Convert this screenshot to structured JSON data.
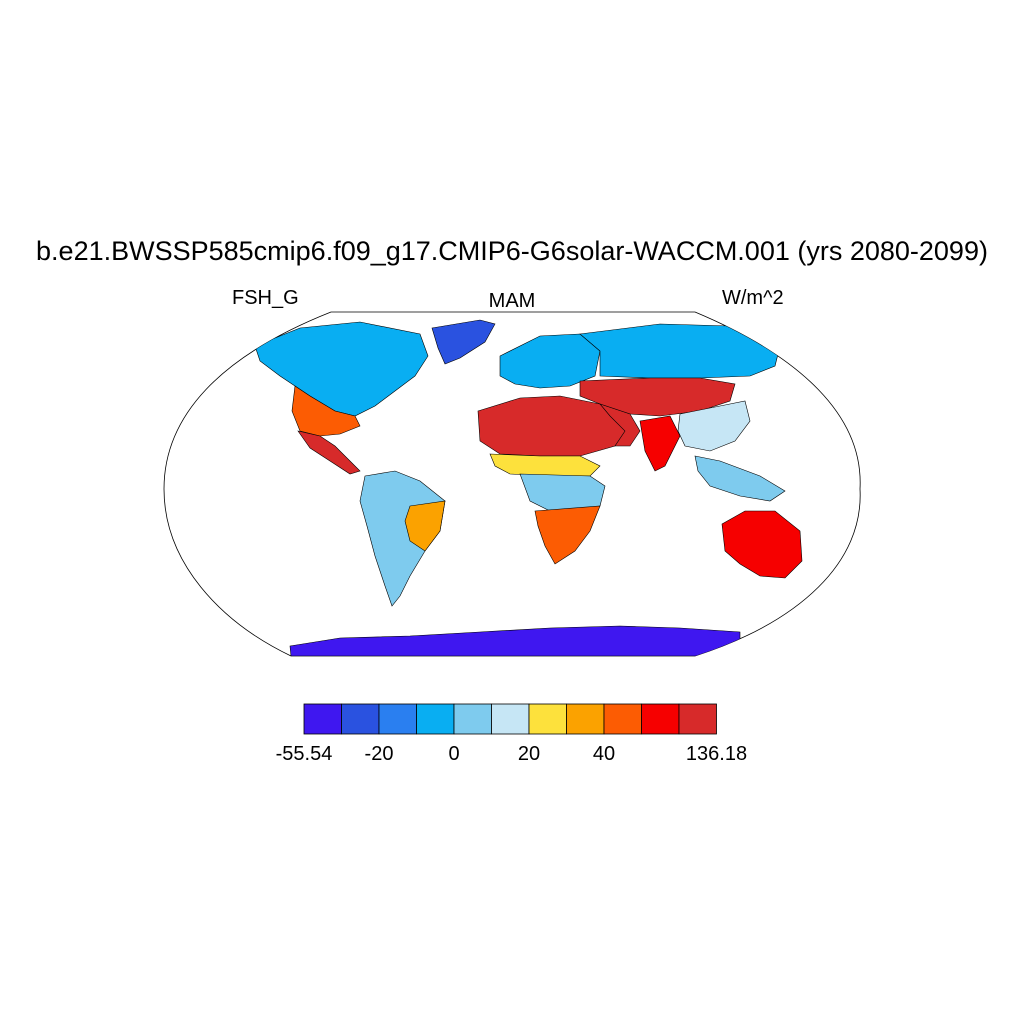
{
  "title": "b.e21.BWSSP585cmip6.f09_g17.CMIP6-G6solar-WACCM.001 (yrs 2080-2099)",
  "left_label": "FSH_G",
  "center_label": "MAM",
  "right_label": "W/m^2",
  "map": {
    "projection": "robinson",
    "ocean_fill": "#ffffff",
    "coastline_color": "#000000",
    "regions": [
      {
        "name": "antarctica",
        "color": "#3f17f0"
      },
      {
        "name": "greenland",
        "color": "#2a52e0"
      },
      {
        "name": "north-america-north",
        "color": "#09aef2"
      },
      {
        "name": "usa-southwest",
        "color": "#fc5c03"
      },
      {
        "name": "mexico",
        "color": "#d72a2a"
      },
      {
        "name": "south-america",
        "color": "#7ecbee"
      },
      {
        "name": "brazil-east",
        "color": "#fba200"
      },
      {
        "name": "sahara",
        "color": "#d72a2a"
      },
      {
        "name": "sahel",
        "color": "#fde13c"
      },
      {
        "name": "central-africa",
        "color": "#7ecbee"
      },
      {
        "name": "southern-africa",
        "color": "#fc5c03"
      },
      {
        "name": "europe",
        "color": "#09aef2"
      },
      {
        "name": "siberia",
        "color": "#09aef2"
      },
      {
        "name": "central-asia",
        "color": "#d72a2a"
      },
      {
        "name": "middle-east",
        "color": "#d72a2a"
      },
      {
        "name": "india",
        "color": "#f60000"
      },
      {
        "name": "east-asia",
        "color": "#c6e6f5"
      },
      {
        "name": "southeast-asia",
        "color": "#7ecbee"
      },
      {
        "name": "australia",
        "color": "#f60000"
      }
    ]
  },
  "colorbar": {
    "colors": [
      "#3f17f0",
      "#2a52e0",
      "#2a7ff0",
      "#09aef2",
      "#7ecbee",
      "#c6e6f5",
      "#fde13c",
      "#fba200",
      "#fc5c03",
      "#f60000",
      "#d72a2a"
    ],
    "tick_labels": [
      {
        "text": "-55.54",
        "boundary": 0
      },
      {
        "text": "-20",
        "boundary": 2
      },
      {
        "text": "0",
        "boundary": 4
      },
      {
        "text": "20",
        "boundary": 6
      },
      {
        "text": "40",
        "boundary": 8
      },
      {
        "text": "136.18",
        "boundary": 11
      }
    ]
  }
}
